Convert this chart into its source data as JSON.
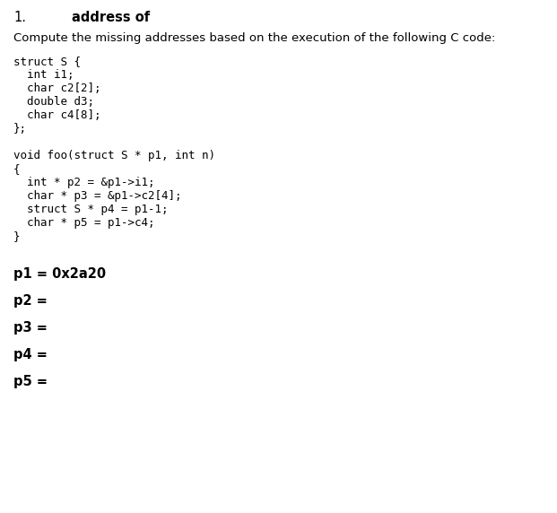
{
  "title_number": "1.",
  "title_bold": "address of",
  "intro_text": "Compute the missing addresses based on the execution of the following C code:",
  "code_block": [
    "struct S {",
    "  int i1;",
    "  char c2[2];",
    "  double d3;",
    "  char c4[8];",
    "};",
    "",
    "void foo(struct S * p1, int n)",
    "{",
    "  int * p2 = &p1->i1;",
    "  char * p3 = &p1->c2[4];",
    "  struct S * p4 = p1-1;",
    "  char * p5 = p1->c4;",
    "}"
  ],
  "answers": [
    {
      "label": "p1 = 0x2a20",
      "bold": true
    },
    {
      "label": "p2 =",
      "bold": true
    },
    {
      "label": "p3 =",
      "bold": true
    },
    {
      "label": "p4 =",
      "bold": true
    },
    {
      "label": "p5 =",
      "bold": true
    }
  ],
  "bg_color": "#ffffff",
  "text_color": "#000000",
  "title_fontsize": 10.5,
  "body_fontsize": 9.5,
  "code_fontsize": 9.0,
  "answer_fontsize": 10.5,
  "fig_width": 6.21,
  "fig_height": 5.72,
  "dpi": 100
}
